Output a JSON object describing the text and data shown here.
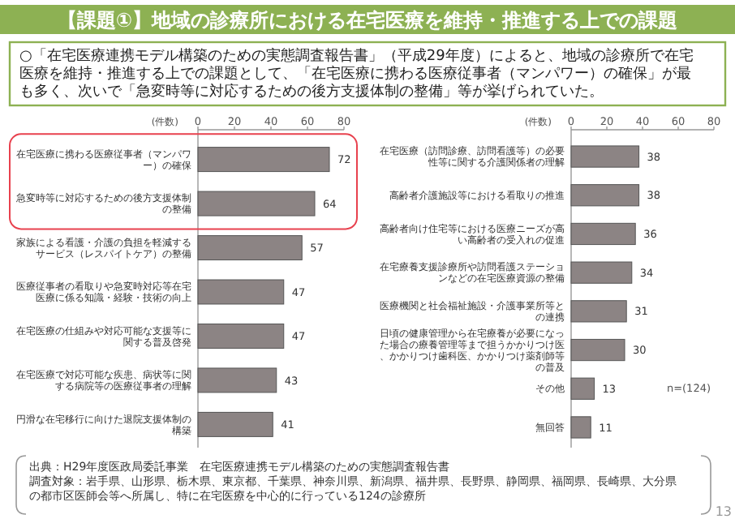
{
  "chart_data": [
    {
      "type": "bar",
      "orientation": "horizontal",
      "title": "【課題①】地域の診療所における在宅医療を維持・推進する上での課題",
      "subtitle": "○「在宅医療連携モデル構築のための実態調査報告書」（平成29年度）によると、地域の診療所で在宅医療を維持・推進する上での課題として、「在宅医療に携わる医療従事者（マンパワー）の確保」が最も多く、次いで「急変時等に対応するための後方支援体制の整備」等が挙げられていた。",
      "xlabel": "(件数)",
      "categories": [
        "在宅医療に携わる医療従事者（マンパワー）の確保",
        "急変時等に対応するための後方支援体制の整備",
        "家族による看護・介護の負担を軽減するサービス（レスパイトケア）の整備",
        "医療従事者の看取りや急変時対応等在宅医療に係る知識・経験・技術の向上",
        "在宅医療の仕組みや対応可能な支援等に関する普及啓発",
        "在宅医療で対応可能な疾患、病状等に関する病院等の医療従事者の理解",
        "円滑な在宅移行に向けた退院支援体制の構築"
      ],
      "values": [
        72,
        64,
        57,
        47,
        47,
        43,
        41
      ],
      "color": "#8c8484",
      "xlim": [
        0,
        80
      ],
      "xticks": [
        0,
        20,
        40,
        60,
        80
      ],
      "data_labels": true,
      "annotations": [
        "出典：H29年度医政局委託事業　在宅医療連携モデル構築のための実態調査報告書",
        "調査対象：岩手県、山形県、栃木県、東京都、千葉県、神奈川県、新潟県、福井県、長野県、静岡県、福岡県、長崎県、大分県の都市区医師会等へ所属し、特に在宅医療を中心的に行っている124の診療所",
        "13"
      ]
    },
    {
      "type": "bar",
      "orientation": "horizontal",
      "xlabel": "(件数)",
      "categories": [
        "在宅医療（訪問診療、訪問看護等）の必要性等に関する介護関係者の理解",
        "高齢者介護施設等における看取りの推進",
        "高齢者向け住宅等における医療ニーズが高い高齢者の受入れの促進",
        "在宅療養支援診療所や訪問看護ステーションなどの在宅医療資源の整備",
        "医療機関と社会福祉施設・介護事業所等との連携",
        "日頃の健康管理から在宅療養が必要になった場合の療養管理等まで担うかかりつけ医、かかりつけ歯科医、かかりつけ薬剤師等の普及",
        "その他",
        "無回答"
      ],
      "values": [
        38,
        38,
        36,
        34,
        31,
        30,
        13,
        11
      ],
      "color": "#8c8484",
      "xlim": [
        0,
        80
      ],
      "xticks": [
        0,
        20,
        40,
        60,
        80
      ],
      "data_labels": true,
      "annotations": [
        "n=(124)"
      ]
    }
  ]
}
